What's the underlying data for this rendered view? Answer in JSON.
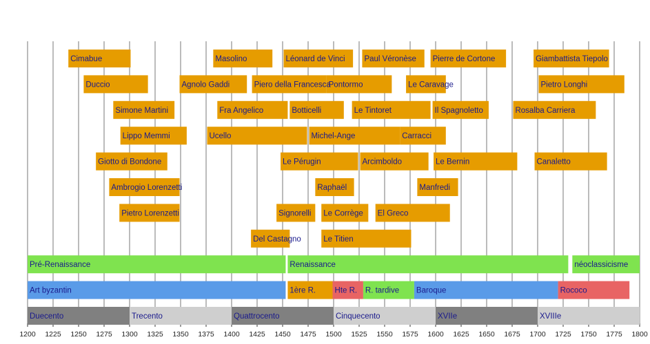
{
  "chart_data": {
    "type": "timeline",
    "xlim": [
      1200,
      1800
    ],
    "xticks": [
      1200,
      1225,
      1250,
      1275,
      1300,
      1325,
      1350,
      1375,
      1400,
      1425,
      1450,
      1475,
      1500,
      1525,
      1550,
      1575,
      1600,
      1625,
      1650,
      1675,
      1700,
      1725,
      1750,
      1775,
      1800
    ],
    "grid": true,
    "color": "#e69c00",
    "rows": [
      [
        {
          "label": "Cimabue",
          "start": 1240,
          "end": 1301
        },
        {
          "label": "Masolino",
          "start": 1382,
          "end": 1440
        },
        {
          "label": "Léonard de Vinci",
          "start": 1451,
          "end": 1519
        },
        {
          "label": "Paul Véronèse",
          "start": 1528,
          "end": 1589
        },
        {
          "label": "Pierre de Cortone",
          "start": 1595,
          "end": 1669
        },
        {
          "label": "Giambattista Tiepolo",
          "start": 1696,
          "end": 1770
        }
      ],
      [
        {
          "label": "Duccio",
          "start": 1255,
          "end": 1318
        },
        {
          "label": "Agnolo Gaddi",
          "start": 1349,
          "end": 1415
        },
        {
          "label": "Piero della Francesca",
          "start": 1420,
          "end": 1493
        },
        {
          "label": "Pontormo",
          "start": 1493,
          "end": 1557
        },
        {
          "label": "Le Caravage",
          "start": 1571,
          "end": 1610
        },
        {
          "label": "Pietro Longhi",
          "start": 1701,
          "end": 1785
        }
      ],
      [
        {
          "label": "Simone Martini",
          "start": 1284,
          "end": 1344
        },
        {
          "label": "Fra Angelico",
          "start": 1386,
          "end": 1455
        },
        {
          "label": "Botticelli",
          "start": 1457,
          "end": 1510
        },
        {
          "label": "Le Tintoret",
          "start": 1518,
          "end": 1595
        },
        {
          "label": "Il Spagnoletto",
          "start": 1597,
          "end": 1652
        },
        {
          "label": "Rosalba Carriera",
          "start": 1676,
          "end": 1757
        }
      ],
      [
        {
          "label": "Lippo Memmi",
          "start": 1291,
          "end": 1356
        },
        {
          "label": "Ucello",
          "start": 1376,
          "end": 1474
        },
        {
          "label": "Michel-Ange",
          "start": 1476,
          "end": 1565
        },
        {
          "label": "Carracci",
          "start": 1565,
          "end": 1610
        }
      ],
      [
        {
          "label": "Giotto di Bondone",
          "start": 1267,
          "end": 1337
        },
        {
          "label": "Le Pérugin",
          "start": 1448,
          "end": 1524
        },
        {
          "label": "Arcimboldo",
          "start": 1526,
          "end": 1593
        },
        {
          "label": "Le Bernin",
          "start": 1598,
          "end": 1680
        },
        {
          "label": "Canaletto",
          "start": 1697,
          "end": 1768
        }
      ],
      [
        {
          "label": "Ambrogio Lorenzetti",
          "start": 1280,
          "end": 1349
        },
        {
          "label": "Raphaël",
          "start": 1482,
          "end": 1520
        },
        {
          "label": "Manfredi",
          "start": 1582,
          "end": 1622
        }
      ],
      [
        {
          "label": "Pietro Lorenzetti",
          "start": 1290,
          "end": 1349
        },
        {
          "label": "Signorelli",
          "start": 1444,
          "end": 1482
        },
        {
          "label": "Le Corrège",
          "start": 1488,
          "end": 1534
        },
        {
          "label": "El Greco",
          "start": 1541,
          "end": 1614
        }
      ],
      [
        {
          "label": "Del Castagno",
          "start": 1419,
          "end": 1457
        },
        {
          "label": "Le Titien",
          "start": 1488,
          "end": 1576
        }
      ],
      [
        {
          "label": "Pré-Renaissance",
          "start": 1200,
          "end": 1453,
          "color": "#7fe34f"
        },
        {
          "label": "Renaissance",
          "start": 1455,
          "end": 1730,
          "color": "#7fe34f"
        },
        {
          "label": "néoclassicisme",
          "start": 1734,
          "end": 1800,
          "color": "#7fe34f"
        }
      ],
      [
        {
          "label": "Art byzantin",
          "start": 1200,
          "end": 1453,
          "color": "#5a9be8"
        },
        {
          "label": "1ère R.",
          "start": 1455,
          "end": 1499,
          "color": "#e69c00"
        },
        {
          "label": "Hte R.",
          "start": 1499,
          "end": 1529,
          "color": "#e86464"
        },
        {
          "label": "R. tardive",
          "start": 1529,
          "end": 1579,
          "color": "#7fe34f"
        },
        {
          "label": "Baroque",
          "start": 1579,
          "end": 1720,
          "color": "#5a9be8"
        },
        {
          "label": "Rococo",
          "start": 1720,
          "end": 1790,
          "color": "#e86464"
        }
      ],
      [
        {
          "label": "Duecento",
          "start": 1200,
          "end": 1300,
          "color": "#808080"
        },
        {
          "label": "Trecento",
          "start": 1300,
          "end": 1400,
          "color": "#cfcfcf"
        },
        {
          "label": "Quattrocento",
          "start": 1400,
          "end": 1500,
          "color": "#808080"
        },
        {
          "label": "Cinquecento",
          "start": 1500,
          "end": 1600,
          "color": "#cfcfcf"
        },
        {
          "label": "XVIIe",
          "start": 1600,
          "end": 1700,
          "color": "#808080"
        },
        {
          "label": "XVIIIe",
          "start": 1700,
          "end": 1800,
          "color": "#cfcfcf"
        }
      ]
    ]
  }
}
